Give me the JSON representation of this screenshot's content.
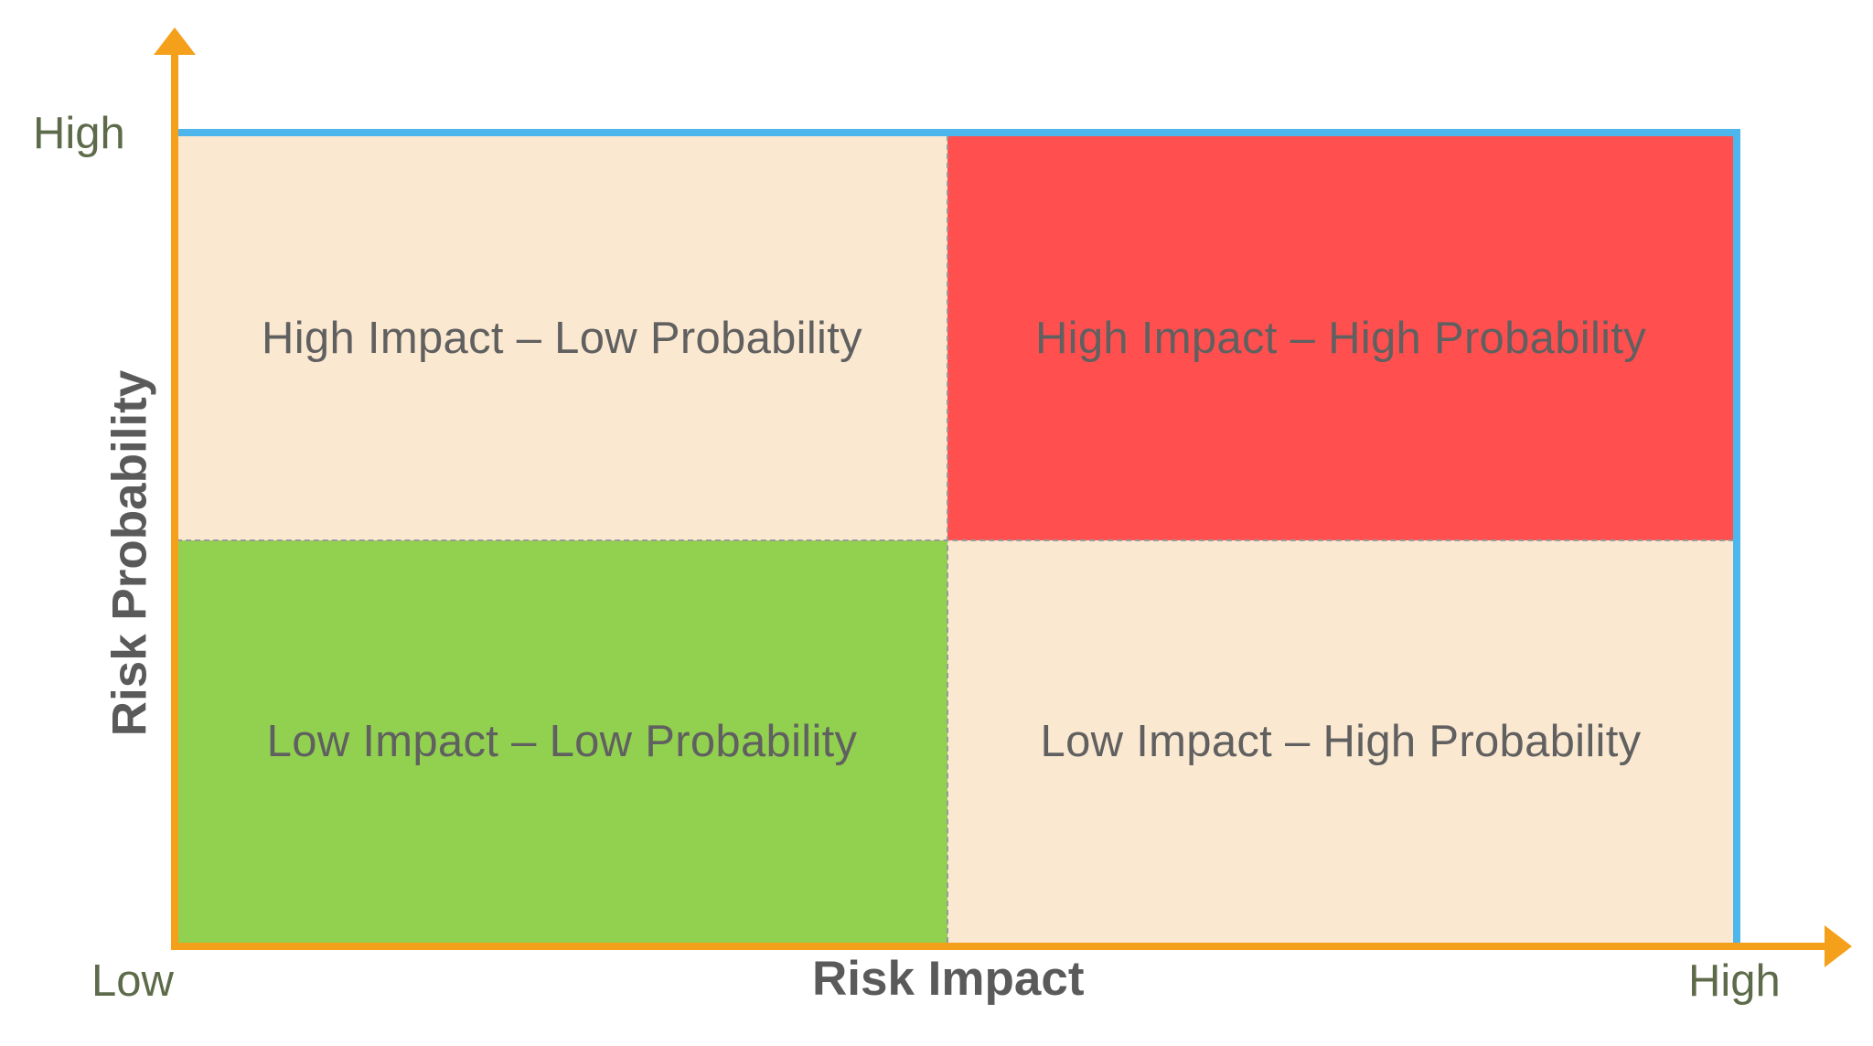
{
  "axes": {
    "x_title": "Risk Impact",
    "y_title": "Risk Probability",
    "x_low": "Low",
    "x_high": "High",
    "y_high": "High"
  },
  "quadrants": {
    "top_left": {
      "label": "High Impact – Low Probability",
      "color": "#fbe8d0"
    },
    "top_right": {
      "label": "High Impact – High Probability",
      "color": "#ff4f4f"
    },
    "bottom_left": {
      "label": "Low Impact – Low Probability",
      "color": "#92d050"
    },
    "bottom_right": {
      "label": "Low Impact – High Probability",
      "color": "#fbe8d0"
    }
  },
  "colors": {
    "axis": "#f5a01a",
    "outline": "#4db6ec",
    "divider": "#9a9a9a"
  }
}
